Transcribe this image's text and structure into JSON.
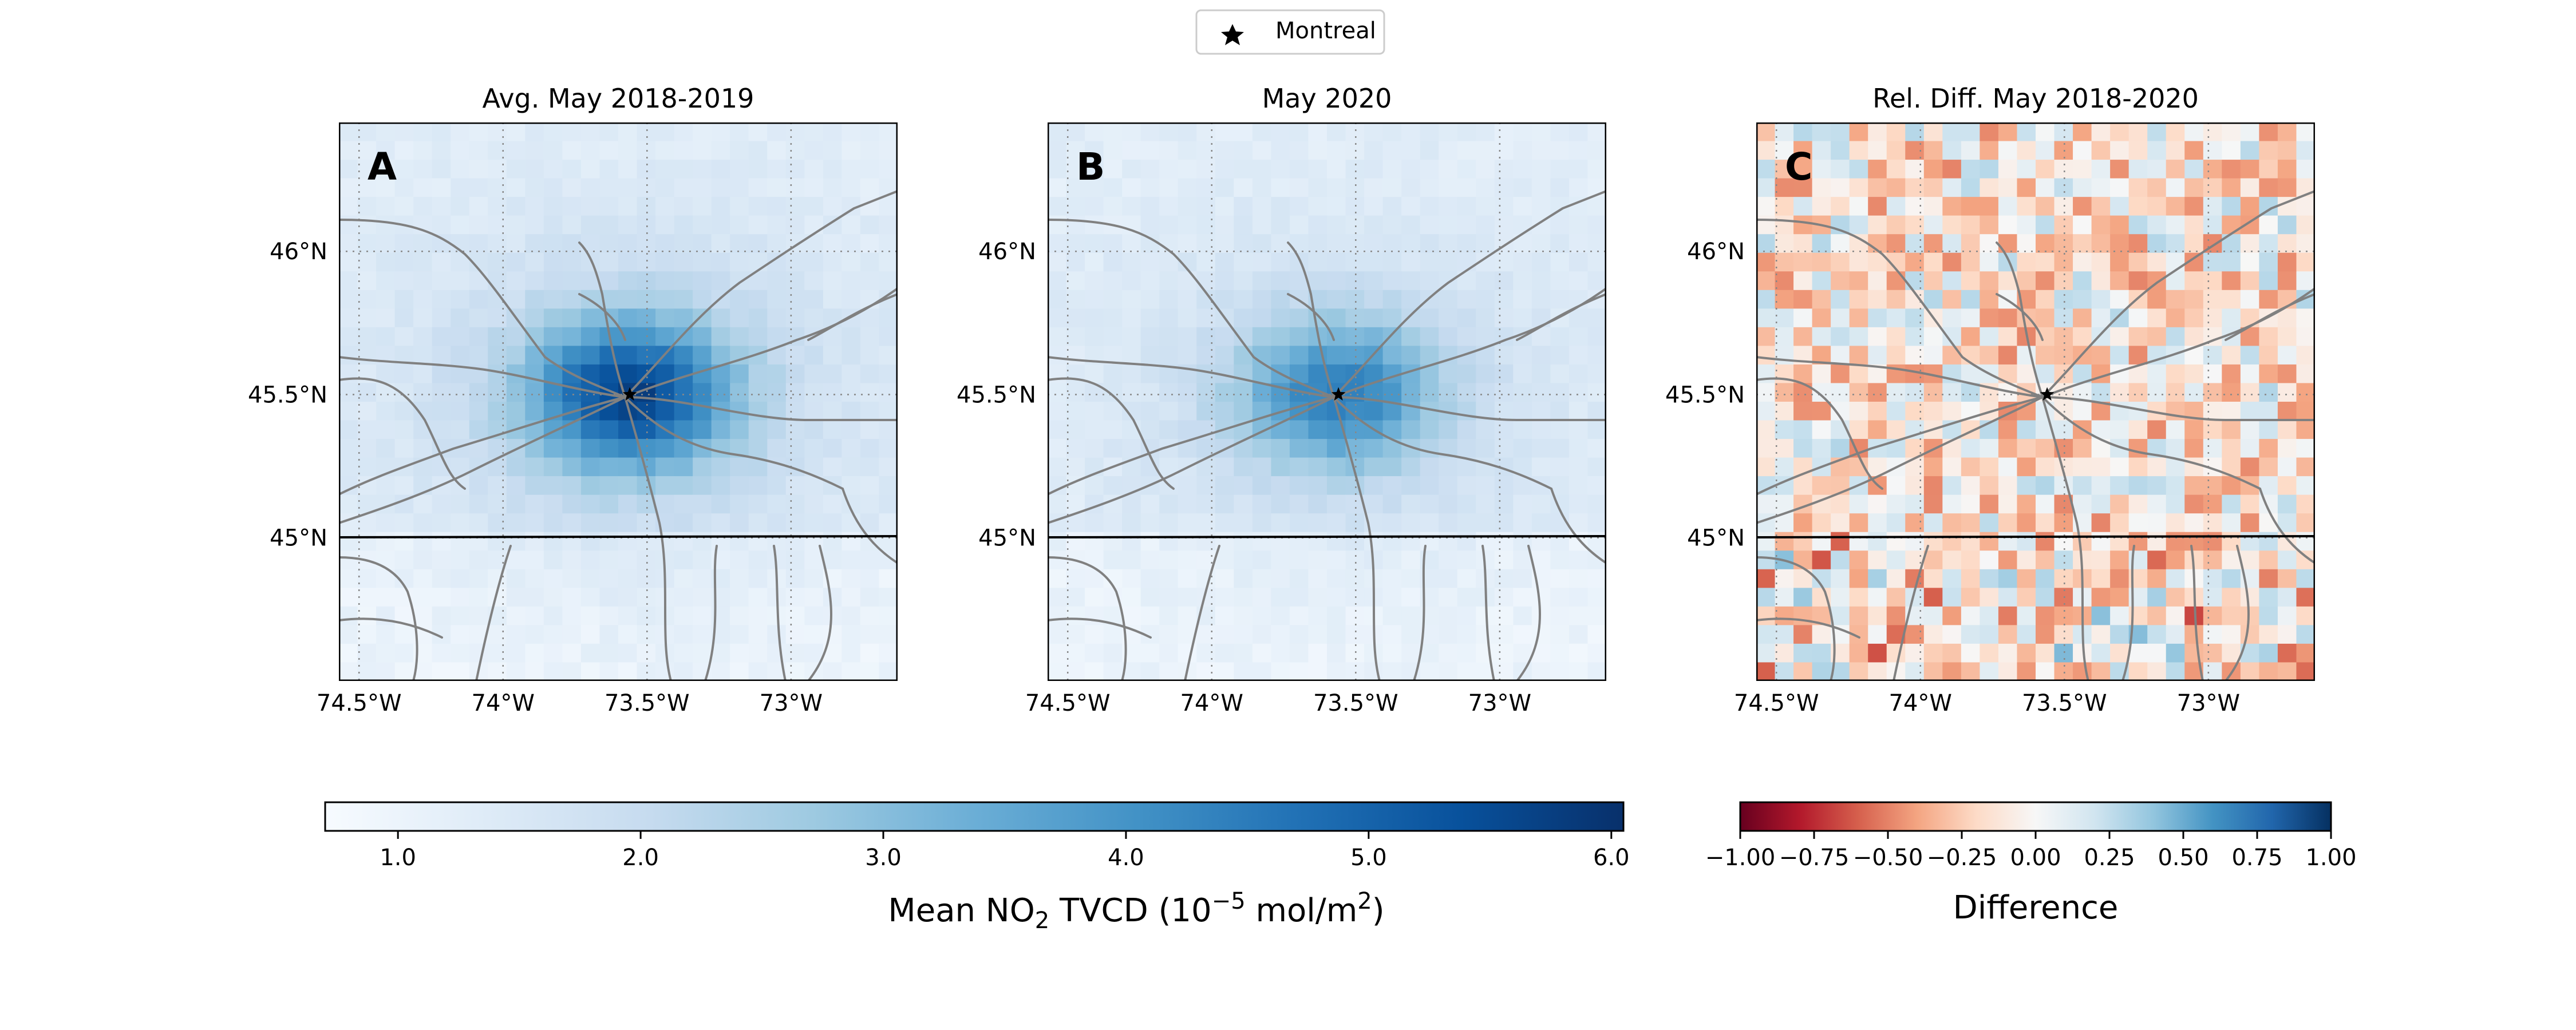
{
  "legend": {
    "marker_label": "Montreal",
    "marker_icon": "star-icon"
  },
  "panels": [
    {
      "letter": "A",
      "title": "Avg. May 2018-2019",
      "kind": "no2_avg"
    },
    {
      "letter": "B",
      "title": "May 2020",
      "kind": "no2_2020"
    },
    {
      "letter": "C",
      "title": "Rel. Diff. May 2018-2020",
      "kind": "rel_diff"
    }
  ],
  "axes": {
    "x_ticks": [
      "74.5°W",
      "74°W",
      "73.5°W",
      "73°W"
    ],
    "y_ticks": [
      "46°N",
      "45.5°N",
      "45°N"
    ],
    "lon_range": [
      -74.57,
      -72.63
    ],
    "lat_range": [
      44.5,
      46.45
    ],
    "x_tick_values": [
      -74.5,
      -74.0,
      -73.5,
      -73.0
    ],
    "y_tick_values": [
      46.0,
      45.5,
      45.0
    ],
    "gridlines": "dotted"
  },
  "city": {
    "name": "Montreal",
    "lon": -73.56,
    "lat": 45.5
  },
  "colorbars": {
    "no2": {
      "label_prefix": "Mean NO",
      "label_sub": "2",
      "label_mid": " TVCD (10",
      "label_sup": "−5",
      "label_mid2": " mol/m",
      "label_sup2": "2",
      "label_suffix": ")",
      "ticks": [
        "1.0",
        "2.0",
        "3.0",
        "4.0",
        "5.0",
        "6.0"
      ],
      "tick_values": [
        1.0,
        2.0,
        3.0,
        4.0,
        5.0,
        6.0
      ],
      "range": [
        0.7,
        6.05
      ],
      "colormap": "Blues"
    },
    "diff": {
      "label": "Difference",
      "ticks": [
        "−1.00",
        "−0.75",
        "−0.50",
        "−0.25",
        "0.00",
        "0.25",
        "0.50",
        "0.75",
        "1.00"
      ],
      "tick_values": [
        -1.0,
        -0.75,
        -0.5,
        -0.25,
        0.0,
        0.25,
        0.5,
        0.75,
        1.0
      ],
      "range": [
        -1.0,
        1.0
      ],
      "colormap": "RdBu"
    }
  },
  "colors": {
    "roads": "#808080",
    "border": "#000000",
    "grid": "#888888"
  }
}
